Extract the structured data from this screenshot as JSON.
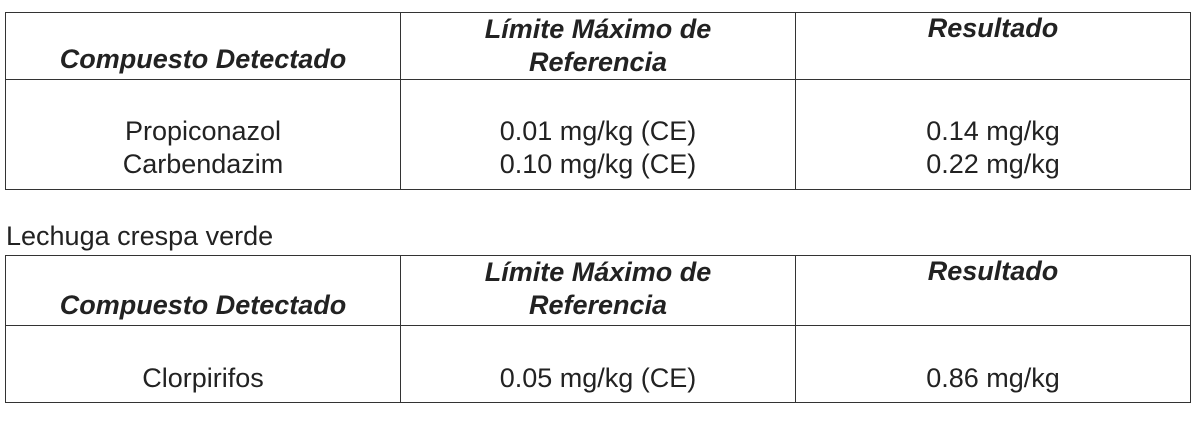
{
  "headers": {
    "compound": "Compuesto Detectado",
    "limit_line1": "Límite Máximo de",
    "limit_line2": "Referencia",
    "result": "Resultado"
  },
  "table1": {
    "rows": [
      {
        "compound": "Propiconazol",
        "limit": "0.01 mg/kg (CE)",
        "result": "0.14 mg/kg"
      },
      {
        "compound": "Carbendazim",
        "limit": "0.10 mg/kg (CE)",
        "result": "0.22 mg/kg"
      }
    ]
  },
  "table2": {
    "caption": "Lechuga crespa verde",
    "rows": [
      {
        "compound": "Clorpirifos",
        "limit": "0.05 mg/kg (CE)",
        "result": "0.86 mg/kg"
      }
    ]
  }
}
